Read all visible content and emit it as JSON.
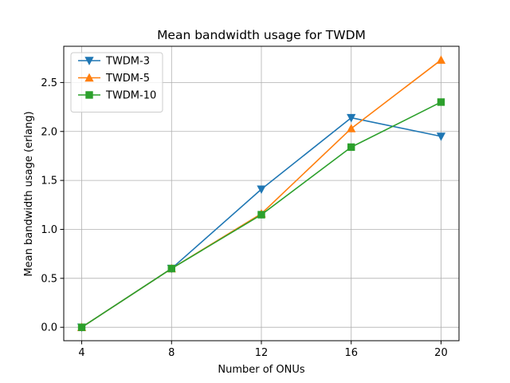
{
  "chart_data": {
    "type": "line",
    "title": "Mean bandwidth usage for TWDM",
    "xlabel": "Number of ONUs",
    "ylabel": "Mean bandwidth usage (erlang)",
    "x": [
      4,
      8,
      12,
      16,
      20
    ],
    "xticks": [
      4,
      8,
      12,
      16,
      20
    ],
    "yticks": [
      0.0,
      0.5,
      1.0,
      1.5,
      2.0,
      2.5
    ],
    "xlim": [
      3.2,
      20.8
    ],
    "ylim": [
      -0.137,
      2.87
    ],
    "grid": true,
    "legend_position": "top-left",
    "series": [
      {
        "name": "TWDM-3",
        "color": "#1f77b4",
        "marker": "triangle-down",
        "values": [
          0.0,
          0.6,
          1.41,
          2.14,
          1.95
        ]
      },
      {
        "name": "TWDM-5",
        "color": "#ff7f0e",
        "marker": "triangle-up",
        "values": [
          0.0,
          0.6,
          1.16,
          2.03,
          2.73
        ]
      },
      {
        "name": "TWDM-10",
        "color": "#2ca02c",
        "marker": "square",
        "values": [
          0.0,
          0.6,
          1.15,
          1.84,
          2.3
        ]
      }
    ]
  }
}
